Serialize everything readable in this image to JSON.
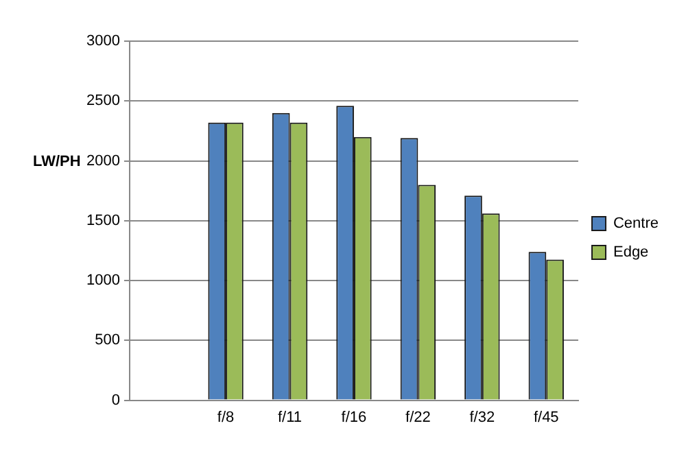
{
  "chart_data": {
    "type": "bar",
    "ylabel": "LW/PH",
    "categories": [
      null,
      "f/8",
      "f/11",
      "f/16",
      "f/22",
      "f/32",
      "f/45"
    ],
    "series": [
      {
        "name": "Centre",
        "color": "#4f81bd",
        "values": [
          null,
          2320,
          2400,
          2460,
          2190,
          1710,
          1240
        ]
      },
      {
        "name": "Edge",
        "color": "#9bbb59",
        "values": [
          null,
          2320,
          2320,
          2200,
          1800,
          1560,
          1175
        ]
      }
    ],
    "ylim": [
      0,
      3000
    ],
    "yticks": [
      0,
      500,
      1000,
      1500,
      2000,
      2500,
      3000
    ],
    "grid": "y",
    "legend": "right"
  }
}
